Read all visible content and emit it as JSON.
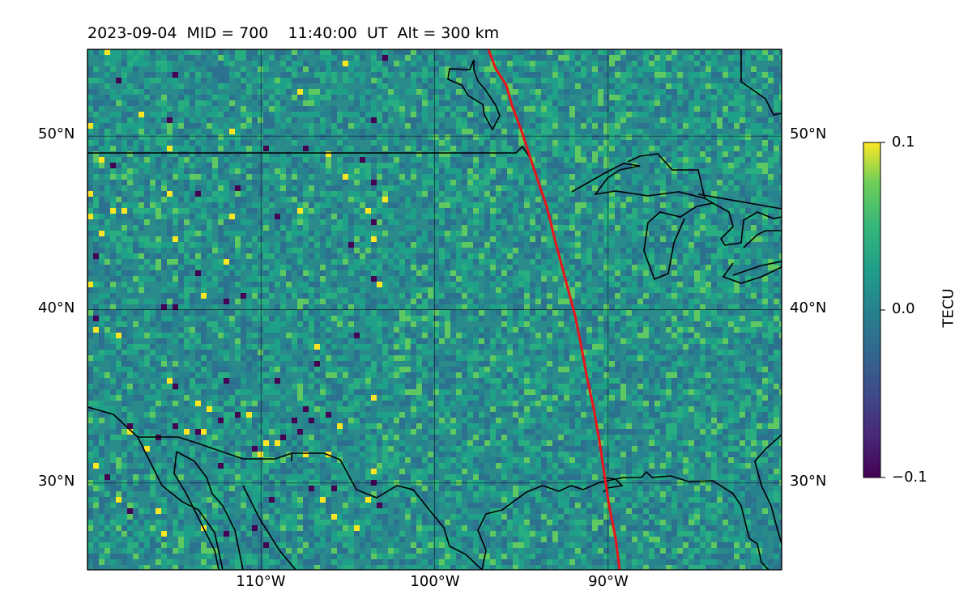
{
  "title": "2023-09-04  MID = 700    11:40:00  UT  Alt = 300 km",
  "map": {
    "lat_range": [
      25,
      55
    ],
    "lon_range": [
      -120,
      -80
    ],
    "lat_ticks": [
      {
        "value": 50,
        "label": "50°N"
      },
      {
        "value": 40,
        "label": "40°N"
      },
      {
        "value": 30,
        "label": "30°N"
      }
    ],
    "lon_ticks": [
      {
        "value": -110,
        "label": "110°W"
      },
      {
        "value": -100,
        "label": "100°W"
      },
      {
        "value": -90,
        "label": "90°W"
      }
    ],
    "gridlines": true,
    "coastlines": true,
    "overlay_track": {
      "color": "#e8141c",
      "description": "terminator line"
    }
  },
  "colorbar": {
    "label": "TECU",
    "colormap": "viridis",
    "vmin": -0.1,
    "vmax": 0.1,
    "ticks": [
      {
        "value": 0.1,
        "label": "0.1"
      },
      {
        "value": 0.0,
        "label": "0.0"
      },
      {
        "value": -0.1,
        "label": "−0.1"
      }
    ]
  },
  "colors": {
    "field_base": "#2a8a8a",
    "track": "#e8141c",
    "coast": "#000000"
  }
}
